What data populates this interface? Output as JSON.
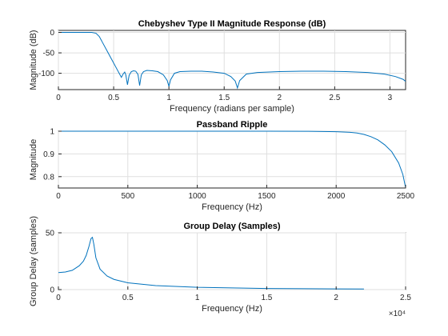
{
  "chart_data": [
    {
      "type": "line",
      "title": "Chebyshev Type II Magnitude Response (dB)",
      "xlabel": "Frequency (radians per sample)",
      "ylabel": "Magnitude (dB)",
      "xlim": [
        0,
        3.1416
      ],
      "ylim": [
        -140,
        5
      ],
      "xticks": [
        0,
        0.5,
        1,
        1.5,
        2,
        2.5,
        3
      ],
      "xtick_labels": [
        "0",
        "0.5",
        "1",
        "1.5",
        "2",
        "2.5",
        "3"
      ],
      "yticks": [
        -100,
        -50,
        0
      ],
      "ytick_labels": [
        "-100",
        "-50",
        "0"
      ],
      "grid": true,
      "series": [
        {
          "color": "#0072bd",
          "x": [
            0,
            0.3,
            0.34,
            0.37,
            0.4,
            0.44,
            0.48,
            0.52,
            0.55,
            0.57,
            0.585,
            0.6,
            0.61,
            0.625,
            0.64,
            0.66,
            0.68,
            0.7,
            0.72,
            0.735,
            0.75,
            0.77,
            0.8,
            0.85,
            0.9,
            0.95,
            0.985,
            1.0,
            1.015,
            1.05,
            1.1,
            1.2,
            1.3,
            1.4,
            1.5,
            1.56,
            1.6,
            1.62,
            1.64,
            1.7,
            1.8,
            2.0,
            2.2,
            2.4,
            2.6,
            2.8,
            2.95,
            3.05,
            3.12,
            3.1416
          ],
          "y": [
            0,
            0,
            -2,
            -10,
            -25,
            -45,
            -65,
            -85,
            -100,
            -110,
            -102,
            -97,
            -104,
            -128,
            -105,
            -96,
            -94,
            -95,
            -103,
            -130,
            -104,
            -96,
            -93,
            -94,
            -96,
            -104,
            -118,
            -132,
            -116,
            -100,
            -96,
            -95,
            -95,
            -97,
            -100,
            -108,
            -119,
            -136,
            -118,
            -102,
            -98,
            -96,
            -95,
            -95,
            -96,
            -98,
            -102,
            -108,
            -115,
            -120
          ]
        }
      ]
    },
    {
      "type": "line",
      "title": "Passband Ripple",
      "xlabel": "Frequency (Hz)",
      "ylabel": "Magnitude",
      "xlim": [
        0,
        2500
      ],
      "ylim": [
        0.75,
        1.0
      ],
      "xticks": [
        0,
        500,
        1000,
        1500,
        2000,
        2500
      ],
      "xtick_labels": [
        "0",
        "500",
        "1000",
        "1500",
        "2000",
        "2500"
      ],
      "yticks": [
        0.8,
        0.9,
        1.0
      ],
      "ytick_labels": [
        "0.8",
        "0.9",
        "1"
      ],
      "grid": true,
      "series": [
        {
          "color": "#0072bd",
          "x": [
            0,
            500,
            1000,
            1500,
            1800,
            2000,
            2100,
            2150,
            2200,
            2250,
            2300,
            2350,
            2400,
            2450,
            2480,
            2500
          ],
          "y": [
            1.0,
            1.0,
            1.0,
            0.9999,
            0.9995,
            0.998,
            0.995,
            0.992,
            0.986,
            0.976,
            0.962,
            0.94,
            0.91,
            0.86,
            0.81,
            0.752
          ]
        }
      ]
    },
    {
      "type": "line",
      "title": "Group Delay (Samples)",
      "xlabel": "Frequency (Hz)",
      "ylabel": "Group Delay (samples)",
      "xlim": [
        0,
        25000
      ],
      "ylim": [
        0,
        50
      ],
      "xticks": [
        0,
        5000,
        10000,
        15000,
        20000,
        25000
      ],
      "xtick_labels": [
        "0",
        "0.5",
        "1",
        "1.5",
        "2",
        "2.5"
      ],
      "x_exponent_label": "×10⁴",
      "yticks": [
        0,
        50
      ],
      "ytick_labels": [
        "0",
        "50"
      ],
      "grid": true,
      "series": [
        {
          "color": "#0072bd",
          "x": [
            0,
            500,
            1000,
            1500,
            1800,
            2000,
            2200,
            2350,
            2450,
            2550,
            2700,
            3000,
            3500,
            4000,
            5000,
            7000,
            10000,
            15000,
            20000,
            22000
          ],
          "y": [
            15,
            15.5,
            17,
            21,
            25,
            30,
            38,
            45,
            46,
            40,
            28,
            18,
            12,
            9,
            6,
            3.5,
            2,
            1,
            0.6,
            0.5
          ]
        }
      ]
    }
  ]
}
